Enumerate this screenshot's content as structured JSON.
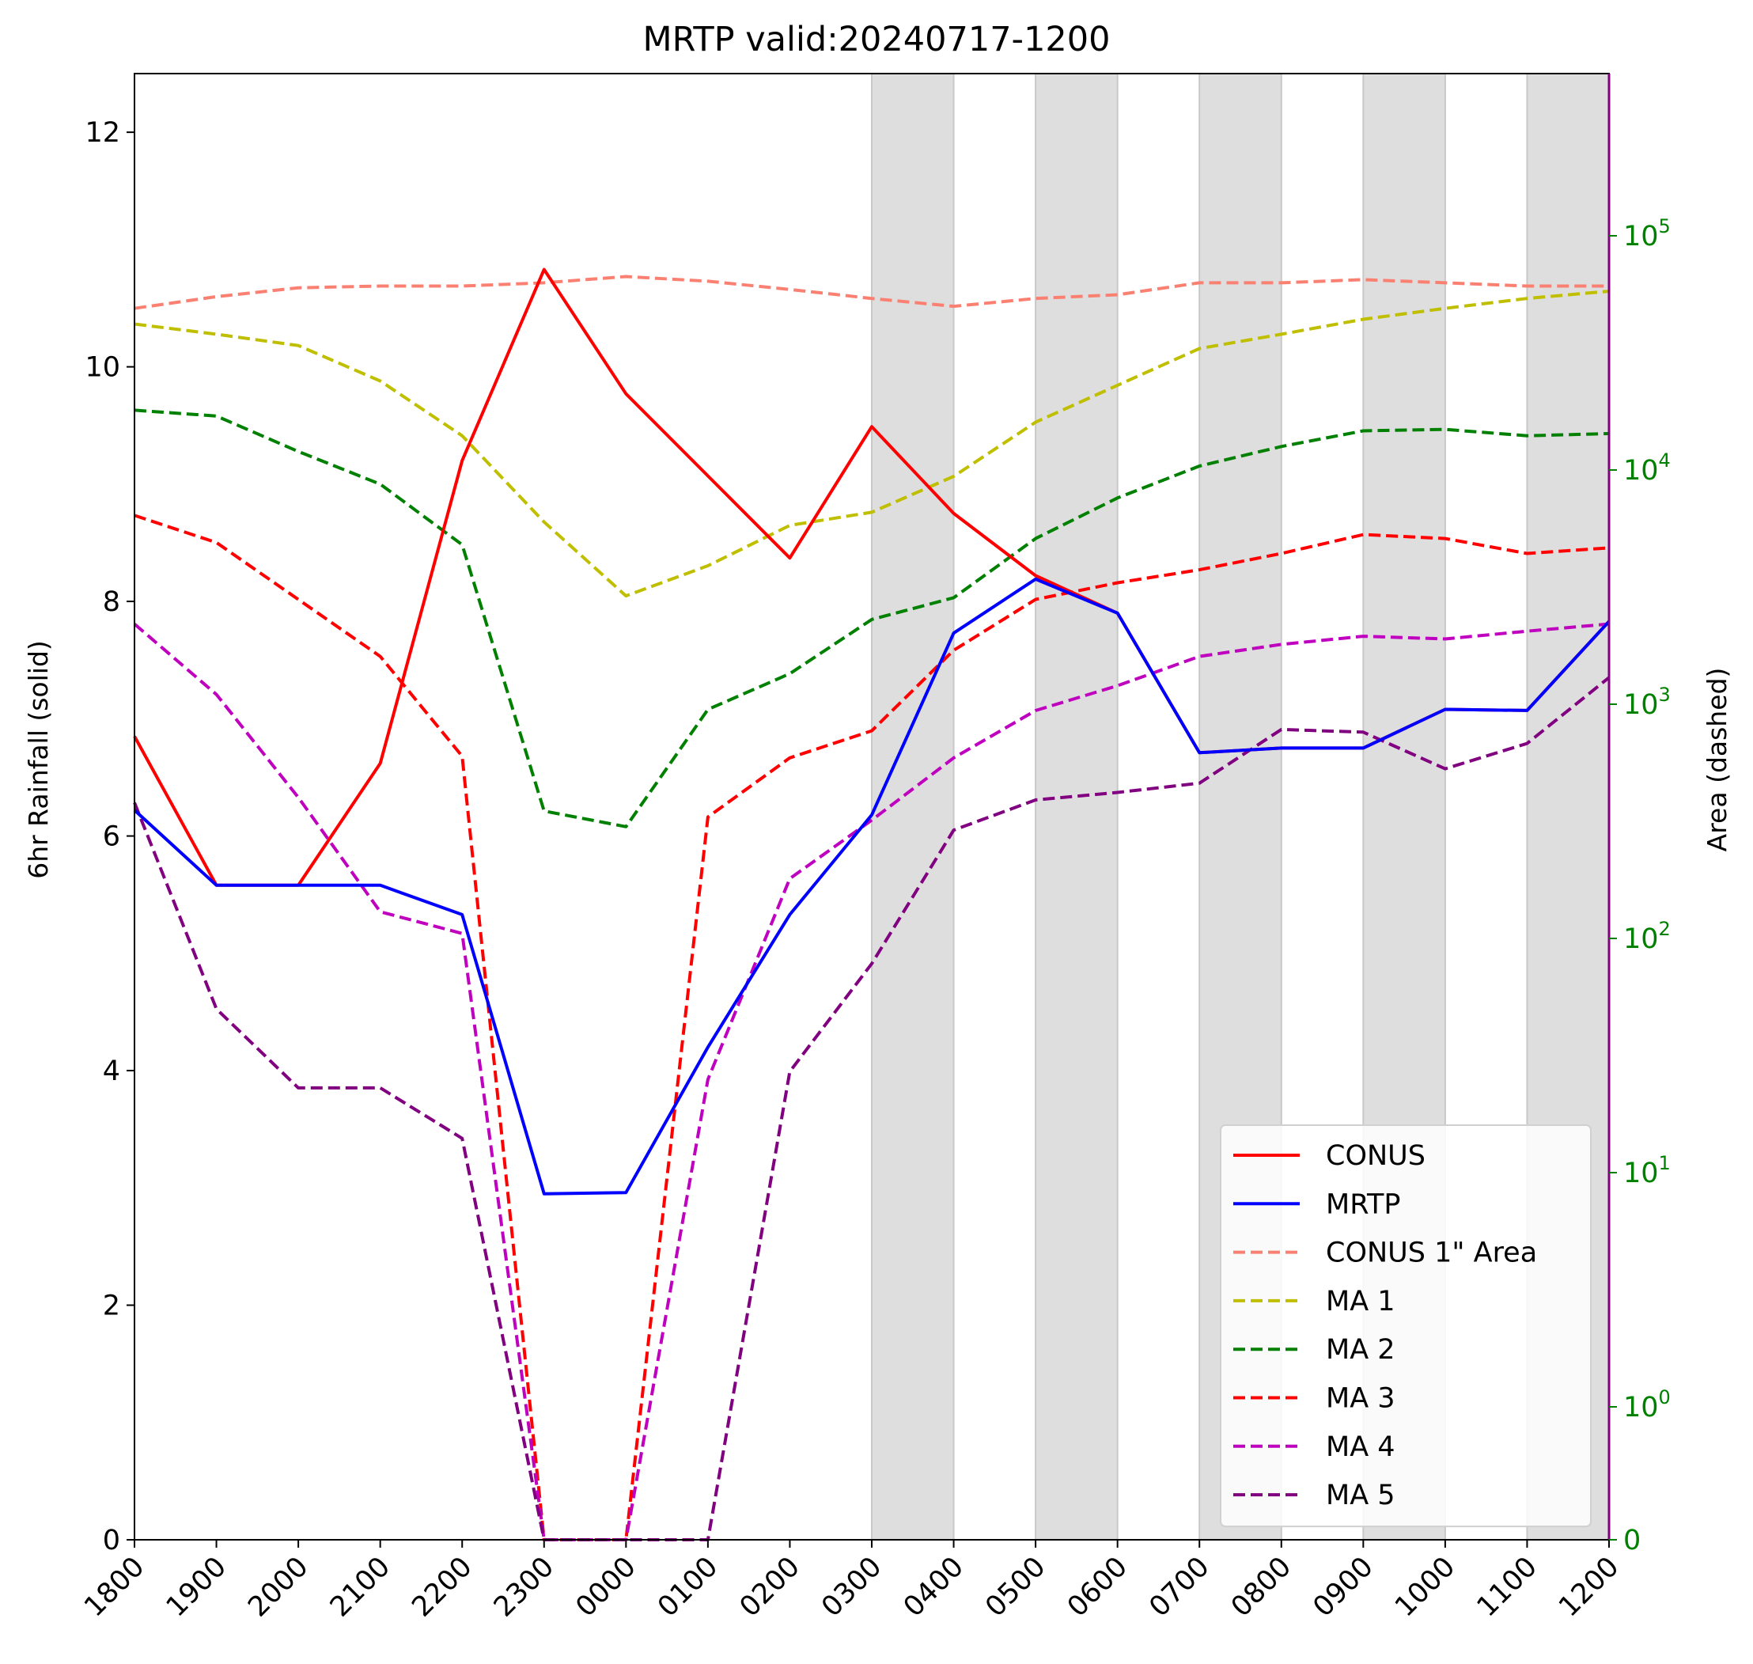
{
  "chart_data": {
    "type": "line",
    "title": "MRTP valid:20240717-1200",
    "ylabel": "6hr Rainfall (solid)",
    "ylabel_right": "Area (dashed)",
    "categories": [
      "1800",
      "1900",
      "2000",
      "2100",
      "2200",
      "2300",
      "0000",
      "0100",
      "0200",
      "0300",
      "0400",
      "0500",
      "0600",
      "0700",
      "0800",
      "0900",
      "1000",
      "1100",
      "1200"
    ],
    "ylim": [
      0,
      12.5
    ],
    "yticks": [
      0,
      2,
      4,
      6,
      8,
      10,
      12
    ],
    "right_axis": {
      "scale": "symlog",
      "ticks": [
        {
          "value": 0,
          "label": "0"
        },
        {
          "value": 1,
          "base": "10",
          "exp": "0"
        },
        {
          "value": 10,
          "base": "10",
          "exp": "1"
        },
        {
          "value": 100,
          "base": "10",
          "exp": "2"
        },
        {
          "value": 1000,
          "base": "10",
          "exp": "3"
        },
        {
          "value": 10000,
          "base": "10",
          "exp": "4"
        },
        {
          "value": 100000,
          "base": "10",
          "exp": "5"
        }
      ],
      "color": "#008000"
    },
    "shaded_intervals": [
      [
        "0300",
        "0400"
      ],
      [
        "0500",
        "0600"
      ],
      [
        "0700",
        "0800"
      ],
      [
        "0900",
        "1000"
      ],
      [
        "1100",
        "1200"
      ]
    ],
    "series": [
      {
        "name": "CONUS",
        "axis": "left",
        "style": "solid",
        "color": "#ff0000",
        "values": [
          6.85,
          5.58,
          5.58,
          6.62,
          9.2,
          10.83,
          9.77,
          9.07,
          8.37,
          9.49,
          8.75,
          8.22,
          7.9,
          6.71,
          6.75,
          6.75,
          7.08,
          7.07,
          7.83
        ]
      },
      {
        "name": "MRTP",
        "axis": "left",
        "style": "solid",
        "color": "#0000ff",
        "values": [
          6.22,
          5.58,
          5.58,
          5.58,
          5.33,
          2.95,
          2.96,
          4.2,
          5.33,
          6.18,
          7.73,
          8.19,
          7.9,
          6.71,
          6.75,
          6.75,
          7.08,
          7.07,
          7.83
        ]
      },
      {
        "name": "CONUS 1\" Area",
        "axis": "right",
        "style": "dashed",
        "color": "#fa8072",
        "values": [
          49000,
          55000,
          60000,
          61000,
          61000,
          63000,
          67000,
          64000,
          59000,
          54000,
          50000,
          54000,
          56000,
          63000,
          63000,
          65000,
          63000,
          61000,
          61000
        ]
      },
      {
        "name": "MA 1",
        "axis": "right",
        "style": "dashed",
        "color": "#bfbf00",
        "values": [
          42000,
          38000,
          34000,
          24000,
          14000,
          6000,
          2900,
          3900,
          5800,
          6600,
          9400,
          16000,
          23000,
          33000,
          38000,
          44000,
          49000,
          54000,
          58000
        ]
      },
      {
        "name": "MA 2",
        "axis": "right",
        "style": "dashed",
        "color": "#008000",
        "values": [
          18000,
          17000,
          12000,
          8700,
          4800,
          350,
          300,
          950,
          1350,
          2300,
          2850,
          5100,
          7600,
          10400,
          12600,
          14700,
          14900,
          14000,
          14300
        ]
      },
      {
        "name": "MA 3",
        "axis": "right",
        "style": "dashed",
        "color": "#ff0000",
        "values": [
          6400,
          4900,
          2800,
          1600,
          600,
          0,
          0,
          330,
          590,
          770,
          1700,
          2800,
          3300,
          3750,
          4400,
          5300,
          5100,
          4400,
          4650
        ]
      },
      {
        "name": "MA 4",
        "axis": "right",
        "style": "dashed",
        "color": "#bf00bf",
        "values": [
          2200,
          1100,
          400,
          130,
          105,
          0,
          0,
          25,
          180,
          320,
          590,
          940,
          1200,
          1600,
          1800,
          1950,
          1900,
          2050,
          2200
        ]
      },
      {
        "name": "MA 5",
        "axis": "right",
        "style": "dashed",
        "color": "#800080",
        "values": [
          380,
          50,
          23,
          23,
          14,
          0,
          0,
          0,
          27,
          78,
          290,
          390,
          420,
          460,
          780,
          760,
          530,
          680,
          1300
        ]
      }
    ],
    "legend": {
      "placement": "lower-right"
    },
    "grid": false
  }
}
